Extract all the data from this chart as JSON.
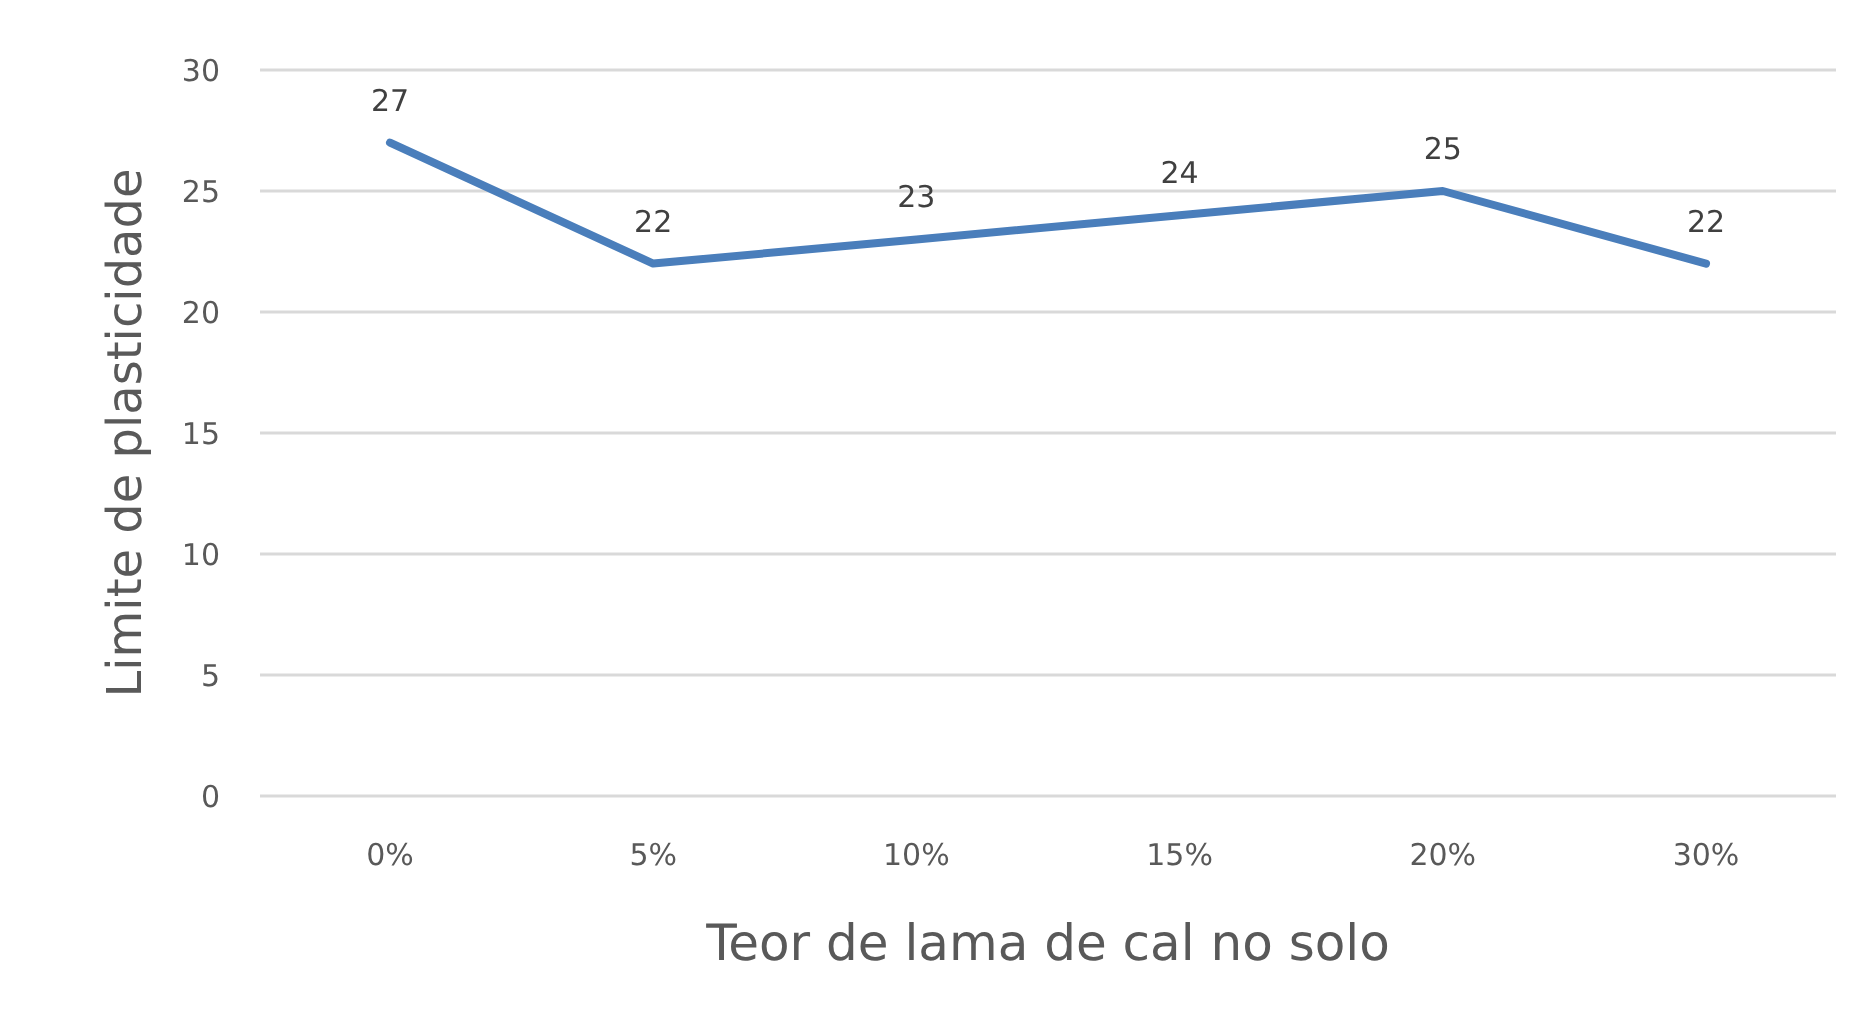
{
  "chart_data": {
    "type": "line",
    "xlabel": "Teor de lama de cal no solo",
    "ylabel": "Limite de plasticidade",
    "categories": [
      "0%",
      "5%",
      "10%",
      "15%",
      "20%",
      "30%"
    ],
    "series": [
      {
        "color": "#4a7ebb",
        "values": [
          27,
          22,
          23,
          24,
          25,
          22
        ]
      }
    ],
    "ylim": [
      0,
      30
    ],
    "yticks": [
      0,
      5,
      10,
      15,
      20,
      25,
      30
    ],
    "grid": "y",
    "data_labels": true,
    "marker": "none"
  }
}
